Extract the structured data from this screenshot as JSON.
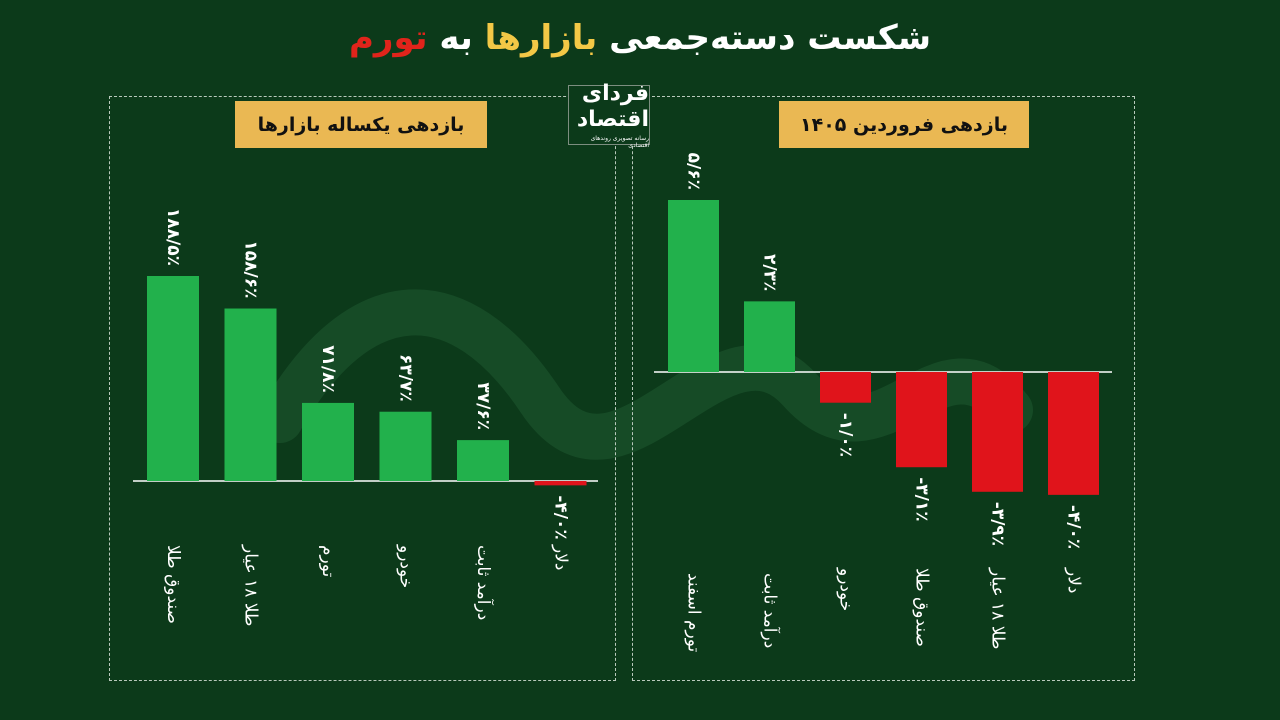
{
  "title": {
    "part1": "شکست دسته‌جمعی",
    "part2": "بازارها",
    "part3": "به",
    "part4": "تورم"
  },
  "logo": {
    "name": "فردای اقتصاد",
    "tagline": "رسانه تصویری روندهای اقتصادی"
  },
  "colors": {
    "background": "#0c3a1a",
    "positive": "#22b14c",
    "negative": "#e0141b",
    "header": "#eab853",
    "title_yellow": "#f3c846",
    "title_red": "#e0241b"
  },
  "chart_data": [
    {
      "type": "bar",
      "title": "بازدهی یکساله بازارها",
      "categories": [
        "صندوق طلا",
        "طلا ۱۸ عیار",
        "تورم",
        "خودرو",
        "درآمد ثابت",
        "دلار"
      ],
      "values": [
        188.5,
        158.6,
        71.8,
        63.7,
        37.6,
        -4.0
      ],
      "value_labels": [
        "۱۸۸/۵٪",
        "۱۵۸/۶٪",
        "۷۱/۸٪",
        "۶۳/۷٪",
        "۳۷/۶٪",
        "-۴/۰٪"
      ]
    },
    {
      "type": "bar",
      "title": "بازدهی فروردین ۱۴۰۵",
      "categories": [
        "تورم اسفند",
        "درآمد ثابت",
        "خودرو",
        "صندوق طلا",
        "طلا ۱۸ عیار",
        "دلار"
      ],
      "values": [
        5.6,
        2.3,
        -1.0,
        -3.1,
        -3.9,
        -4.0
      ],
      "value_labels": [
        "۵/۶٪",
        "۲/۳٪",
        "-۱/۰٪",
        "-۳/۱٪",
        "-۳/۹٪",
        "-۴/۰٪"
      ]
    }
  ]
}
